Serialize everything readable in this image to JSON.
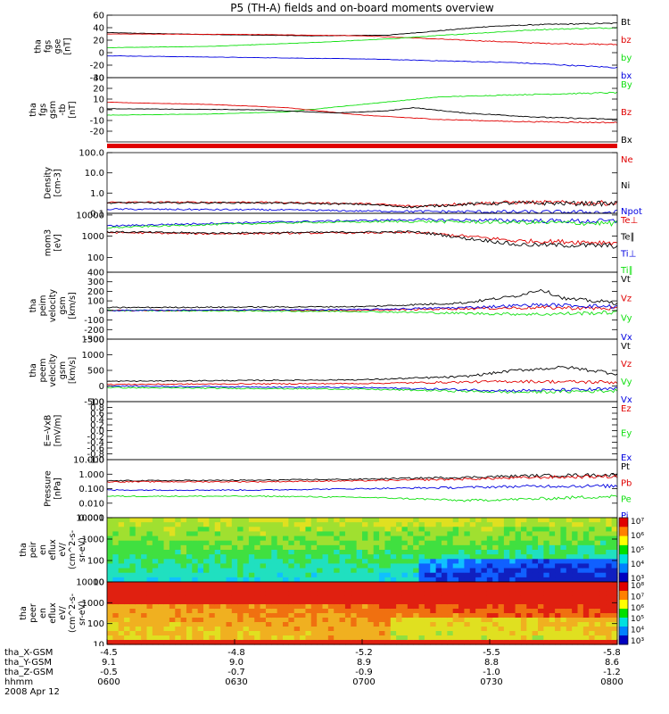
{
  "title": "P5 (TH-A) fields and on-board moments overview",
  "colors": {
    "black": "#000000",
    "red": "#e00000",
    "green": "#10e010",
    "blue": "#0000e0"
  },
  "chart_data": [
    {
      "type": "line",
      "id": "fgs-gse",
      "ylabel": [
        "tha",
        "fgs",
        "gse",
        "[nT]"
      ],
      "ylim": [
        -40,
        60
      ],
      "scale": "linear",
      "ticks": [
        -40,
        -20,
        0,
        20,
        40,
        60
      ],
      "tick_labels": [
        "-40",
        "-20",
        "0",
        "20",
        "40",
        "60"
      ],
      "series": [
        {
          "name": "Bt",
          "color": "black",
          "x": [
            0,
            0.2,
            0.4,
            0.55,
            0.65,
            0.75,
            0.85,
            1
          ],
          "y": [
            32,
            29,
            27,
            28,
            35,
            42,
            45,
            47
          ]
        },
        {
          "name": "bz",
          "color": "red",
          "x": [
            0,
            0.3,
            0.5,
            0.7,
            0.85,
            1
          ],
          "y": [
            30,
            29,
            27,
            20,
            15,
            13
          ]
        },
        {
          "name": "by",
          "color": "green",
          "x": [
            0,
            0.2,
            0.4,
            0.55,
            0.7,
            0.85,
            1
          ],
          "y": [
            8,
            10,
            16,
            22,
            30,
            37,
            40
          ]
        },
        {
          "name": "bx",
          "color": "blue",
          "x": [
            0,
            0.3,
            0.5,
            0.65,
            0.8,
            1
          ],
          "y": [
            -5,
            -8,
            -10,
            -13,
            -16,
            -24
          ]
        }
      ]
    },
    {
      "type": "line",
      "id": "fgs-gsm",
      "ylabel": [
        "tha",
        "fgs",
        "gsm",
        "-tb",
        "[nT]"
      ],
      "ylim": [
        -30,
        30
      ],
      "scale": "linear",
      "ticks": [
        -20,
        -10,
        0,
        10,
        20,
        30
      ],
      "tick_labels": [
        "-20",
        "-10",
        "0",
        "10",
        "20",
        "30"
      ],
      "series": [
        {
          "name": "By",
          "color": "green",
          "x": [
            0,
            0.2,
            0.35,
            0.5,
            0.65,
            0.8,
            1
          ],
          "y": [
            -5,
            -4,
            -2,
            5,
            12,
            14,
            16
          ]
        },
        {
          "name": "Bz",
          "color": "red",
          "x": [
            0,
            0.2,
            0.35,
            0.5,
            0.65,
            0.8,
            1
          ],
          "y": [
            7,
            5,
            2,
            -5,
            -9,
            -11,
            -12
          ]
        },
        {
          "name": "Bx",
          "color": "black",
          "x": [
            0,
            0.3,
            0.45,
            0.55,
            0.6,
            0.7,
            0.85,
            1
          ],
          "y": [
            1,
            0,
            -3,
            -1,
            2,
            -3,
            -7,
            -9
          ]
        }
      ]
    },
    {
      "type": "line",
      "id": "density",
      "ylabel": [
        "Density",
        "[cm-3]"
      ],
      "ylim": [
        0.1,
        100
      ],
      "scale": "log",
      "ticks": [
        0.1,
        1,
        10,
        100
      ],
      "tick_labels": [
        "0.1",
        "1.0",
        "10.0",
        "100.0"
      ],
      "series": [
        {
          "name": "Ne",
          "color": "red",
          "x": [
            0,
            0.3,
            0.5,
            0.6,
            0.7,
            0.8,
            1
          ],
          "y": [
            0.35,
            0.35,
            0.3,
            0.22,
            0.3,
            0.35,
            0.32
          ]
        },
        {
          "name": "Ni",
          "color": "black",
          "x": [
            0,
            0.3,
            0.5,
            0.6,
            0.7,
            0.8,
            1
          ],
          "y": [
            0.33,
            0.33,
            0.28,
            0.2,
            0.28,
            0.32,
            0.3
          ]
        },
        {
          "name": "Npot",
          "color": "blue",
          "x": [
            0,
            0.3,
            0.5,
            0.7,
            1
          ],
          "y": [
            0.16,
            0.15,
            0.13,
            0.12,
            0.11
          ]
        }
      ]
    },
    {
      "type": "line",
      "id": "temperature",
      "ylabel": [
        "mom3",
        "[eV]"
      ],
      "ylim": [
        20,
        12000
      ],
      "scale": "log",
      "ticks": [
        100,
        1000,
        10000
      ],
      "tick_labels": [
        "100",
        "1000",
        "10000"
      ],
      "series": [
        {
          "name": "Te⊥",
          "color": "red",
          "x": [
            0,
            0.2,
            0.4,
            0.6,
            0.7,
            0.8,
            1
          ],
          "y": [
            1500,
            1300,
            1400,
            1500,
            1000,
            600,
            500
          ]
        },
        {
          "name": "Te∥",
          "color": "black",
          "x": [
            0,
            0.2,
            0.4,
            0.6,
            0.7,
            0.8,
            1
          ],
          "y": [
            1600,
            1400,
            1500,
            1600,
            800,
            400,
            350
          ]
        },
        {
          "name": "Ti⊥",
          "color": "blue",
          "x": [
            0,
            0.2,
            0.4,
            0.6,
            0.8,
            1
          ],
          "y": [
            3000,
            4000,
            5000,
            6000,
            5500,
            5000
          ]
        },
        {
          "name": "Ti∥",
          "color": "green",
          "x": [
            0,
            0.2,
            0.4,
            0.6,
            0.8,
            1
          ],
          "y": [
            2500,
            3500,
            4500,
            5000,
            4500,
            4000
          ]
        }
      ]
    },
    {
      "type": "line",
      "id": "peim-velocity",
      "ylabel": [
        "tha",
        "peim",
        "velocity",
        "gsm",
        "[km/s]"
      ],
      "ylim": [
        -300,
        400
      ],
      "scale": "linear",
      "ticks": [
        -300,
        -200,
        -100,
        0,
        100,
        200,
        300,
        400
      ],
      "tick_labels": [
        "-300",
        "-200",
        "-100",
        "0",
        "100",
        "200",
        "300",
        "400"
      ],
      "series": [
        {
          "name": "Vt",
          "color": "black",
          "x": [
            0,
            0.5,
            0.7,
            0.8,
            0.85,
            0.9,
            1
          ],
          "y": [
            30,
            40,
            80,
            150,
            220,
            120,
            80
          ]
        },
        {
          "name": "Vz",
          "color": "red",
          "x": [
            0,
            0.5,
            0.7,
            0.85,
            1
          ],
          "y": [
            0,
            0,
            20,
            30,
            20
          ]
        },
        {
          "name": "Vy",
          "color": "green",
          "x": [
            0,
            0.5,
            0.7,
            0.85,
            1
          ],
          "y": [
            0,
            -10,
            -30,
            -40,
            -20
          ]
        },
        {
          "name": "Vx",
          "color": "blue",
          "x": [
            0,
            0.5,
            0.7,
            0.85,
            1
          ],
          "y": [
            0,
            10,
            30,
            60,
            40
          ]
        }
      ]
    },
    {
      "type": "line",
      "id": "peem-velocity",
      "ylabel": [
        "tha",
        "peem",
        "velocity",
        "gsm",
        "[km/s]"
      ],
      "ylim": [
        -500,
        1500
      ],
      "scale": "linear",
      "ticks": [
        -500,
        0,
        500,
        1000,
        1500
      ],
      "tick_labels": [
        "-500",
        "0",
        "500",
        "1000",
        "1500"
      ],
      "series": [
        {
          "name": "Vt",
          "color": "black",
          "x": [
            0,
            0.5,
            0.7,
            0.8,
            0.9,
            1
          ],
          "y": [
            150,
            200,
            300,
            500,
            600,
            400
          ]
        },
        {
          "name": "Vz",
          "color": "red",
          "x": [
            0,
            0.5,
            0.8,
            1
          ],
          "y": [
            50,
            80,
            150,
            120
          ]
        },
        {
          "name": "Vy",
          "color": "green",
          "x": [
            0,
            0.5,
            0.8,
            1
          ],
          "y": [
            -50,
            -100,
            -200,
            -150
          ]
        },
        {
          "name": "Vx",
          "color": "blue",
          "x": [
            0,
            0.5,
            0.8,
            1
          ],
          "y": [
            0,
            -50,
            -150,
            -100
          ]
        }
      ]
    },
    {
      "type": "line",
      "id": "efield",
      "ylabel": [
        "E=-VxB",
        "[mV/m]"
      ],
      "ylim": [
        -1,
        1
      ],
      "scale": "linear",
      "ticks": [
        -1,
        -0.8,
        -0.6,
        -0.4,
        -0.2,
        0,
        0.2,
        0.4,
        0.6,
        0.8,
        1
      ],
      "tick_labels": [
        "-1.0",
        "-0.8",
        "-0.6",
        "-0.4",
        "-0.2",
        "0.0",
        "0.2",
        "0.4",
        "0.6",
        "0.8",
        "1.0"
      ],
      "series": [
        {
          "name": "Ez",
          "color": "red",
          "x": [],
          "y": []
        },
        {
          "name": "Ey",
          "color": "green",
          "x": [],
          "y": []
        },
        {
          "name": "Ex",
          "color": "blue",
          "x": [],
          "y": []
        }
      ]
    },
    {
      "type": "line",
      "id": "pressure",
      "ylabel": [
        "Pressure",
        "[nPa]"
      ],
      "ylim": [
        0.001,
        10
      ],
      "scale": "log",
      "ticks": [
        0.001,
        0.01,
        0.1,
        1,
        10
      ],
      "tick_labels": [
        "0.001",
        "0.010",
        "0.100",
        "1.000",
        "10.000"
      ],
      "series": [
        {
          "name": "Pt",
          "color": "black",
          "x": [
            0,
            0.3,
            0.5,
            0.7,
            0.85,
            1
          ],
          "y": [
            0.35,
            0.38,
            0.45,
            0.6,
            0.8,
            0.9
          ]
        },
        {
          "name": "Pb",
          "color": "red",
          "x": [
            0,
            0.3,
            0.5,
            0.7,
            0.85,
            1
          ],
          "y": [
            0.3,
            0.3,
            0.35,
            0.45,
            0.6,
            0.7
          ]
        },
        {
          "name": "Pe",
          "color": "green",
          "x": [
            0,
            0.3,
            0.5,
            0.6,
            0.7,
            0.85,
            1
          ],
          "y": [
            0.03,
            0.03,
            0.025,
            0.02,
            0.015,
            0.02,
            0.03
          ]
        },
        {
          "name": "Pi",
          "color": "blue",
          "x": [
            0,
            0.3,
            0.5,
            0.7,
            0.85,
            1
          ],
          "y": [
            0.08,
            0.08,
            0.1,
            0.12,
            0.15,
            0.15
          ]
        }
      ]
    },
    {
      "type": "heatmap",
      "id": "peir-eflux",
      "ylabel": [
        "tha",
        "peir",
        "en",
        "eflux",
        "eV/",
        "(cm^2-s-",
        "sr-eV)"
      ],
      "ylim": [
        10,
        10000
      ],
      "scale": "log",
      "ticks": [
        10,
        100,
        1000,
        10000
      ],
      "tick_labels": [
        "10",
        "100",
        "1000",
        "10000"
      ],
      "colorbar": {
        "ticks": [
          "10³",
          "10⁴",
          "10⁵",
          "10⁶",
          "10⁷"
        ]
      }
    },
    {
      "type": "heatmap",
      "id": "peer-eflux",
      "ylabel": [
        "tha",
        "peer",
        "en",
        "eflux",
        "eV/",
        "(cm^2-s-",
        "sr-eV)"
      ],
      "ylim": [
        10,
        10000
      ],
      "scale": "log",
      "ticks": [
        10,
        100,
        1000,
        10000
      ],
      "tick_labels": [
        "10",
        "100",
        "1000",
        "10000"
      ],
      "colorbar": {
        "ticks": [
          "10³",
          "10⁴",
          "10⁵",
          "10⁶",
          "10⁷",
          "10⁸"
        ]
      }
    }
  ],
  "ephemeris": [
    {
      "label": "tha_X-GSM",
      "values": [
        "-4.5",
        "-4.8",
        "-5.2",
        "-5.5",
        "-5.8"
      ]
    },
    {
      "label": "tha_Y-GSM",
      "values": [
        "9.1",
        "9.0",
        "8.9",
        "8.8",
        "8.6"
      ]
    },
    {
      "label": "tha_Z-GSM",
      "values": [
        "-0.5",
        "-0.7",
        "-0.9",
        "-1.0",
        "-1.2"
      ]
    },
    {
      "label": "hhmm",
      "values": [
        "0600",
        "0630",
        "0700",
        "0730",
        "0800"
      ]
    }
  ],
  "date": "2008 Apr 12"
}
